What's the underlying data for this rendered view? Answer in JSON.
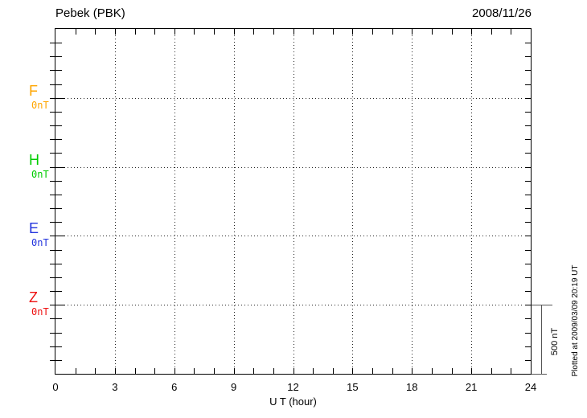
{
  "header": {
    "title": "Pebek (PBK)",
    "date": "2008/11/26"
  },
  "chart_data": {
    "type": "line",
    "title": "Pebek (PBK)",
    "date": "2008/11/26",
    "xlabel": "U T (hour)",
    "x_ticks": [
      0,
      3,
      6,
      9,
      12,
      15,
      18,
      21,
      24
    ],
    "xlim": [
      0,
      24
    ],
    "x_minor_tick_hours": 1,
    "grid": "dotted vertical lines every 3 hours; dotted horizontal line at each channel baseline; 25 y-divisions (100 nT each)",
    "channels": [
      {
        "label": "F",
        "baseline_label": "0nT",
        "color": "#FFA500"
      },
      {
        "label": "H",
        "baseline_label": "0nT",
        "color": "#00CC00"
      },
      {
        "label": "E",
        "baseline_label": "0nT",
        "color": "#2233DD"
      },
      {
        "label": "Z",
        "baseline_label": "0nT",
        "color": "#EE1111"
      }
    ],
    "series": [],
    "note_no_data": "no data traces plotted for this day",
    "y_scale_bar": {
      "label": "500 nT",
      "minor_tick_nT": 100
    },
    "footer": "Plotted at 2009/03/09 20:19 UT"
  }
}
